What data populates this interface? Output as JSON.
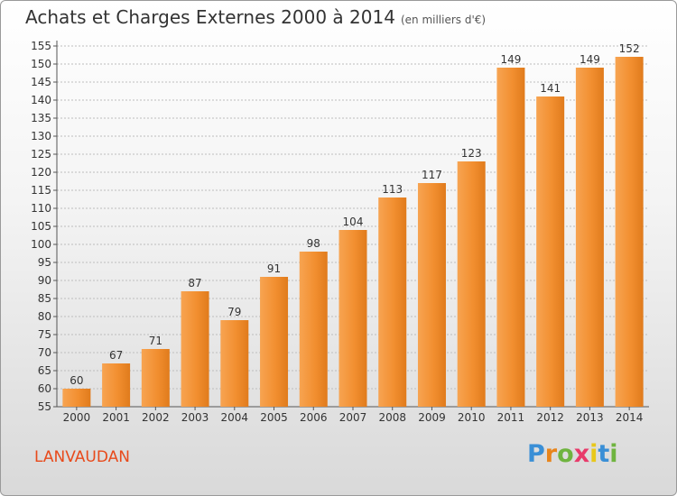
{
  "title": "Achats et Charges Externes 2000 à 2014",
  "unit": "(en milliers d'€)",
  "commune": "LANVAUDAN",
  "logo": {
    "text": "Proxiti",
    "letter_colors": [
      "#3a8fd6",
      "#e8851b",
      "#6fb43f",
      "#e83a6a",
      "#e8c81b",
      "#3a8fd6",
      "#6fb43f"
    ]
  },
  "colors": {
    "bar": "#f08a2a",
    "bar_light": "#f6a655",
    "grid": "#bdbdbd",
    "axis": "#555555",
    "commune": "#e84a1b"
  },
  "chart_data": {
    "type": "bar",
    "categories": [
      "2000",
      "2001",
      "2002",
      "2003",
      "2004",
      "2005",
      "2006",
      "2007",
      "2008",
      "2009",
      "2010",
      "2011",
      "2012",
      "2013",
      "2014"
    ],
    "values": [
      60,
      67,
      71,
      87,
      79,
      91,
      98,
      104,
      113,
      117,
      123,
      149,
      141,
      149,
      152
    ],
    "ylim": [
      55,
      155
    ],
    "yticks": [
      55,
      60,
      65,
      70,
      75,
      80,
      85,
      90,
      95,
      100,
      105,
      110,
      115,
      120,
      125,
      130,
      135,
      140,
      145,
      150,
      155
    ],
    "grid": true,
    "data_labels": true
  }
}
